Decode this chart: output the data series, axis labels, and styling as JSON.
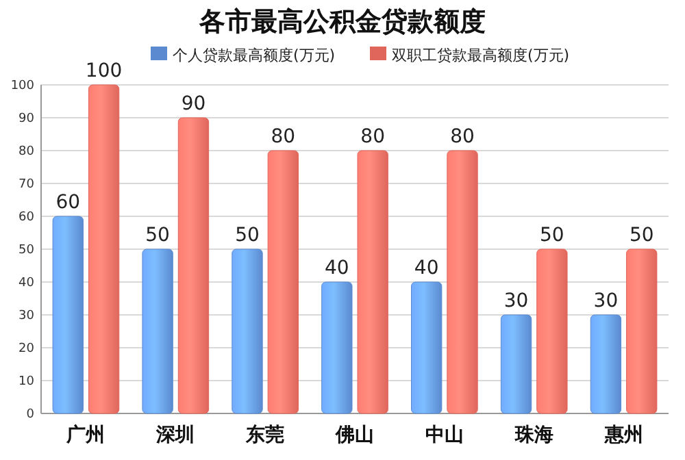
{
  "chart_data": {
    "type": "bar",
    "title": "各市最高公积金贷款额度",
    "categories": [
      "广州",
      "深圳",
      "东莞",
      "佛山",
      "中山",
      "珠海",
      "惠州"
    ],
    "series": [
      {
        "name": "个人贷款最高额度(万元)",
        "color": "#5b8ad0",
        "values": [
          60,
          50,
          50,
          40,
          40,
          30,
          30
        ]
      },
      {
        "name": "双职工贷款最高额度(万元)",
        "color": "#e0665c",
        "values": [
          100,
          90,
          80,
          80,
          80,
          50,
          50
        ]
      }
    ],
    "ylim": [
      0,
      100
    ],
    "yticks": [
      0,
      10,
      20,
      30,
      40,
      50,
      60,
      70,
      80,
      90,
      100
    ],
    "grid": "y",
    "legend": "top",
    "data_labels": true
  }
}
